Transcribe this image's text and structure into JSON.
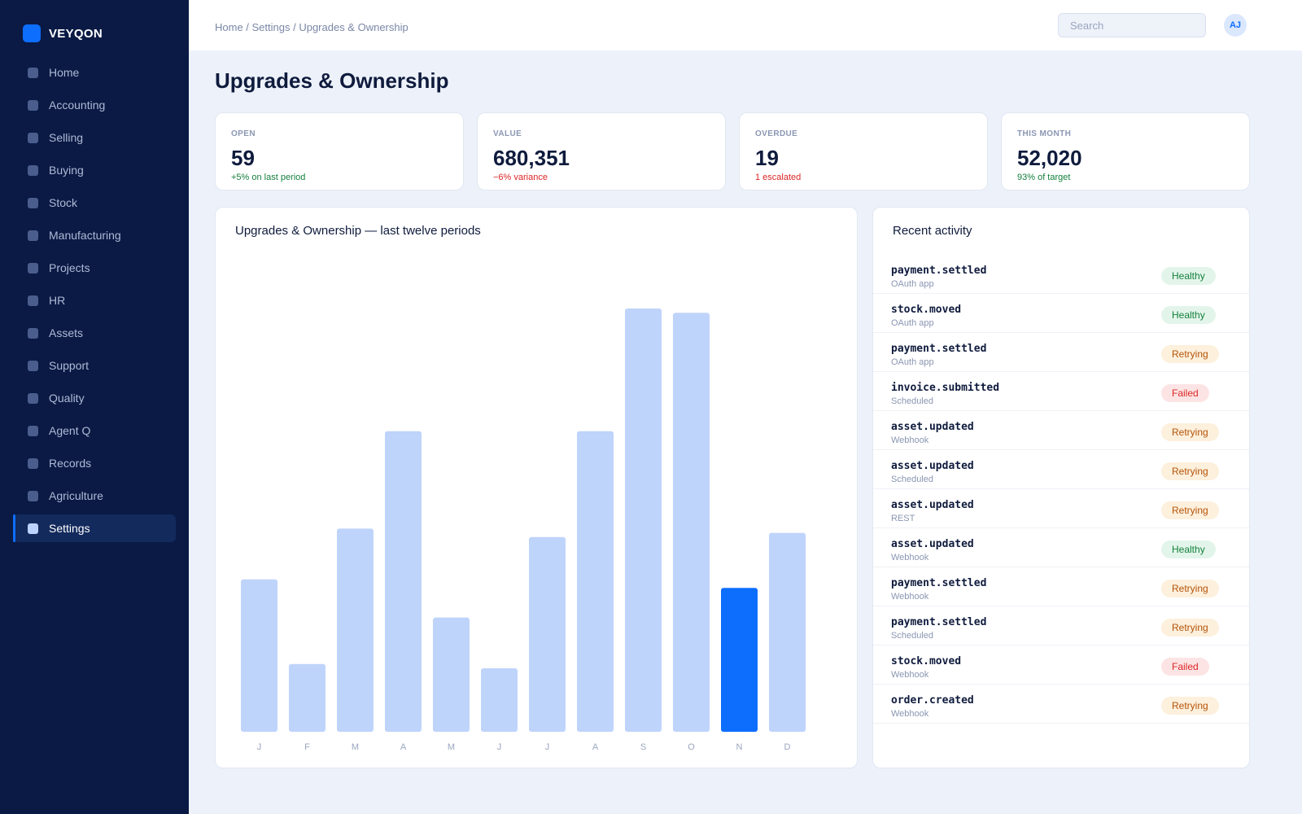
{
  "app": {
    "name": "VEYQON"
  },
  "sidebar": {
    "items": [
      {
        "label": "Home",
        "active": false
      },
      {
        "label": "Accounting",
        "active": false
      },
      {
        "label": "Selling",
        "active": false
      },
      {
        "label": "Buying",
        "active": false
      },
      {
        "label": "Stock",
        "active": false
      },
      {
        "label": "Manufacturing",
        "active": false
      },
      {
        "label": "Projects",
        "active": false
      },
      {
        "label": "HR",
        "active": false
      },
      {
        "label": "Assets",
        "active": false
      },
      {
        "label": "Support",
        "active": false
      },
      {
        "label": "Quality",
        "active": false
      },
      {
        "label": "Agent Q",
        "active": false
      },
      {
        "label": "Records",
        "active": false
      },
      {
        "label": "Agriculture",
        "active": false
      },
      {
        "label": "Settings",
        "active": true
      }
    ]
  },
  "header": {
    "breadcrumb": "Home / Settings / Upgrades & Ownership",
    "search_placeholder": "Search",
    "avatar_initials": "AJ"
  },
  "page": {
    "title": "Upgrades & Ownership"
  },
  "kpis": [
    {
      "label": "OPEN",
      "value": "59",
      "delta": "+5% on last period",
      "trend": "up"
    },
    {
      "label": "VALUE",
      "value": "680,351",
      "delta": "−6% variance",
      "trend": "down"
    },
    {
      "label": "OVERDUE",
      "value": "19",
      "delta": "1 escalated",
      "trend": "down"
    },
    {
      "label": "THIS MONTH",
      "value": "52,020",
      "delta": "93% of target",
      "trend": "up"
    }
  ],
  "chart": {
    "title": "Upgrades & Ownership — last twelve periods"
  },
  "chart_data": {
    "type": "bar",
    "categories": [
      "J",
      "F",
      "M",
      "A",
      "M",
      "J",
      "J",
      "A",
      "S",
      "O",
      "N",
      "D"
    ],
    "values": [
      36,
      16,
      48,
      71,
      27,
      15,
      46,
      71,
      100,
      99,
      34,
      47
    ],
    "highlight_index": 10,
    "ylim": [
      0,
      100
    ],
    "grid": false,
    "colors": {
      "bar": "#bfd4fb",
      "highlight": "#0d6efd",
      "tick_label": "#9aa5bf"
    }
  },
  "activity": {
    "title": "Recent activity",
    "items": [
      {
        "event": "payment.settled",
        "source": "OAuth app",
        "status": "Healthy",
        "status_kind": "healthy"
      },
      {
        "event": "stock.moved",
        "source": "OAuth app",
        "status": "Healthy",
        "status_kind": "healthy"
      },
      {
        "event": "payment.settled",
        "source": "OAuth app",
        "status": "Retrying",
        "status_kind": "retrying"
      },
      {
        "event": "invoice.submitted",
        "source": "Scheduled",
        "status": "Failed",
        "status_kind": "failed"
      },
      {
        "event": "asset.updated",
        "source": "Webhook",
        "status": "Retrying",
        "status_kind": "retrying"
      },
      {
        "event": "asset.updated",
        "source": "Scheduled",
        "status": "Retrying",
        "status_kind": "retrying"
      },
      {
        "event": "asset.updated",
        "source": "REST",
        "status": "Retrying",
        "status_kind": "retrying"
      },
      {
        "event": "asset.updated",
        "source": "Webhook",
        "status": "Healthy",
        "status_kind": "healthy"
      },
      {
        "event": "payment.settled",
        "source": "Webhook",
        "status": "Retrying",
        "status_kind": "retrying"
      },
      {
        "event": "payment.settled",
        "source": "Scheduled",
        "status": "Retrying",
        "status_kind": "retrying"
      },
      {
        "event": "stock.moved",
        "source": "Webhook",
        "status": "Failed",
        "status_kind": "failed"
      },
      {
        "event": "order.created",
        "source": "Webhook",
        "status": "Retrying",
        "status_kind": "retrying"
      }
    ]
  },
  "colors": {
    "accent": "#0d6efd",
    "sidebar_bg": "#0a1a45",
    "page_bg": "#edf2fa"
  }
}
